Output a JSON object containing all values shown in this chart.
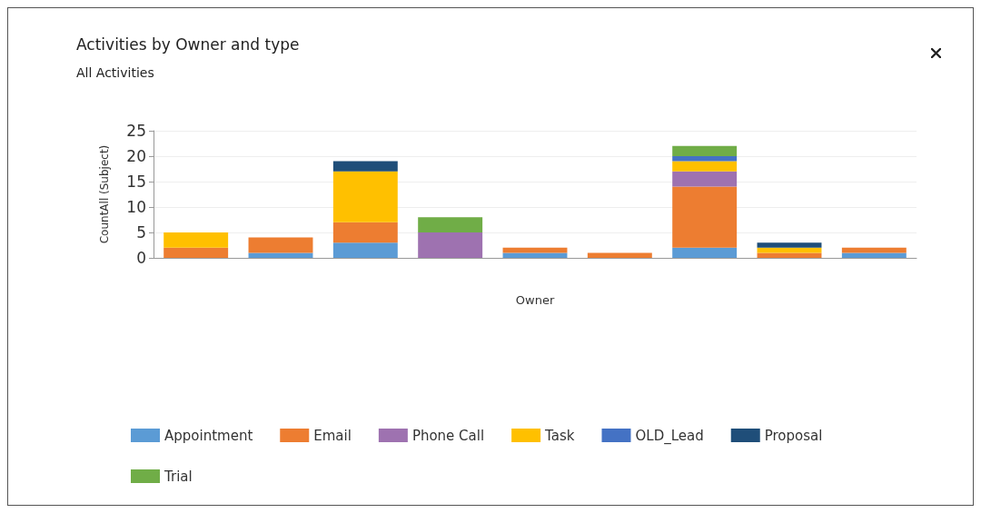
{
  "chart_data": {
    "type": "bar",
    "title": "Activities by Owner and type",
    "subtitle": "All Activities",
    "xlabel": "Owner",
    "ylabel": "CountAll (Subject)",
    "categories": [
      null,
      null,
      null,
      null,
      null,
      null,
      null,
      null,
      null
    ],
    "stacked": true,
    "ylim": [
      0,
      25
    ],
    "yticks": [
      0,
      5,
      10,
      15,
      20,
      25
    ],
    "grid": "y",
    "legend": "bottom",
    "series": [
      {
        "name": "Appointment",
        "color": "#5b9bd5",
        "values": [
          null,
          1,
          3,
          null,
          1,
          null,
          2,
          null,
          1
        ]
      },
      {
        "name": "Email",
        "color": "#ed7d31",
        "values": [
          2,
          3,
          4,
          null,
          1,
          1,
          12,
          1,
          1
        ]
      },
      {
        "name": "Phone Call",
        "color": "#9e72b0",
        "values": [
          null,
          null,
          null,
          5,
          null,
          null,
          3,
          null,
          null
        ]
      },
      {
        "name": "Task",
        "color": "#ffc000",
        "values": [
          3,
          null,
          10,
          null,
          null,
          null,
          2,
          1,
          null
        ]
      },
      {
        "name": "OLD_Lead",
        "color": "#4472c4",
        "values": [
          null,
          null,
          null,
          null,
          null,
          null,
          1,
          null,
          null
        ]
      },
      {
        "name": "Proposal",
        "color": "#1f4e79",
        "values": [
          null,
          null,
          2,
          null,
          null,
          null,
          null,
          1,
          null
        ]
      },
      {
        "name": "Trial",
        "color": "#70ad47",
        "values": [
          null,
          null,
          null,
          3,
          null,
          null,
          2,
          null,
          null
        ]
      }
    ]
  }
}
